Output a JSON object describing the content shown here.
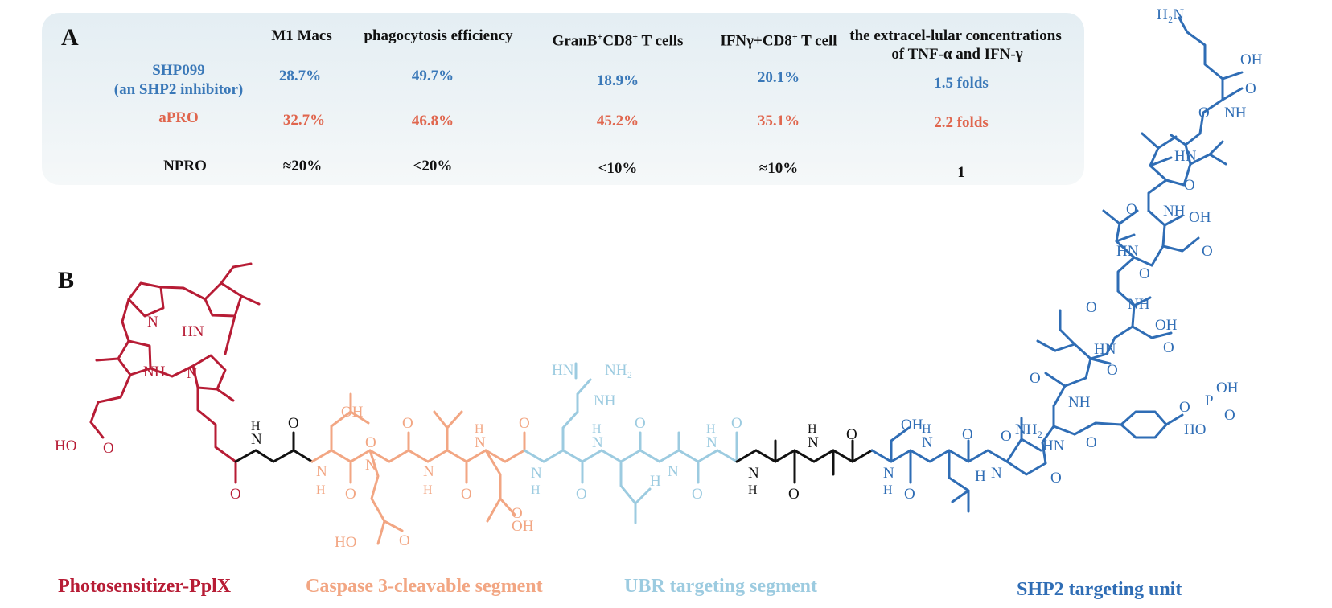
{
  "panel_a": {
    "letter": "A",
    "col_headers": {
      "m1": "M1 Macs",
      "phago": "phagocytosis efficiency",
      "granb_a": "GranB",
      "granb_sup": "+",
      "granb_b": "CD8",
      "granb_sup2": "+",
      "granb_c": " T cells",
      "ifn_a": "IFNγ+CD8",
      "ifn_sup": "+",
      "ifn_b": " T cell",
      "tnf_line1": "the extracel-lular concentrations",
      "tnf_line2": "of TNF-α and IFN-γ"
    },
    "rows": [
      {
        "name_line1": "SHP099",
        "name_line2": "(an SHP2 inhibitor)",
        "m1": "28.7%",
        "phago": "49.7%",
        "granb": "18.9%",
        "ifn": "20.1%",
        "tnf": "1.5 folds",
        "color": "#3a78b8"
      },
      {
        "name_line1": "aPRO",
        "name_line2": "",
        "m1": "32.7%",
        "phago": "46.8%",
        "granb": "45.2%",
        "ifn": "35.1%",
        "tnf": "2.2 folds",
        "color": "#e0664e"
      },
      {
        "name_line1": "NPRO",
        "name_line2": "",
        "m1": "≈20%",
        "phago": "<20%",
        "granb": "<10%",
        "ifn": "≈10%",
        "tnf": "1",
        "color": "#111111"
      }
    ]
  },
  "panel_b": {
    "letter": "B",
    "segments": [
      {
        "label": "Photosensitizer-PplX",
        "color": "#b71c35"
      },
      {
        "label": "Caspase 3-cleavable segment",
        "color": "#f2a683"
      },
      {
        "label": "UBR targeting segment",
        "color": "#9ccbe0"
      },
      {
        "label": "SHP2 targeting unit",
        "color": "#2f6db5"
      }
    ],
    "atoms": {
      "hooc": "HO",
      "o": "O",
      "n": "N",
      "hn": "HN",
      "nh": "NH",
      "h": "H",
      "oh": "OH",
      "nh2": "NH₂",
      "h2n": "H₂N",
      "p": "P",
      "hn_guan": "HN",
      "nh2_guan": "NH₂",
      "ho": "HO",
      "nh2_b": "NH₂"
    }
  }
}
